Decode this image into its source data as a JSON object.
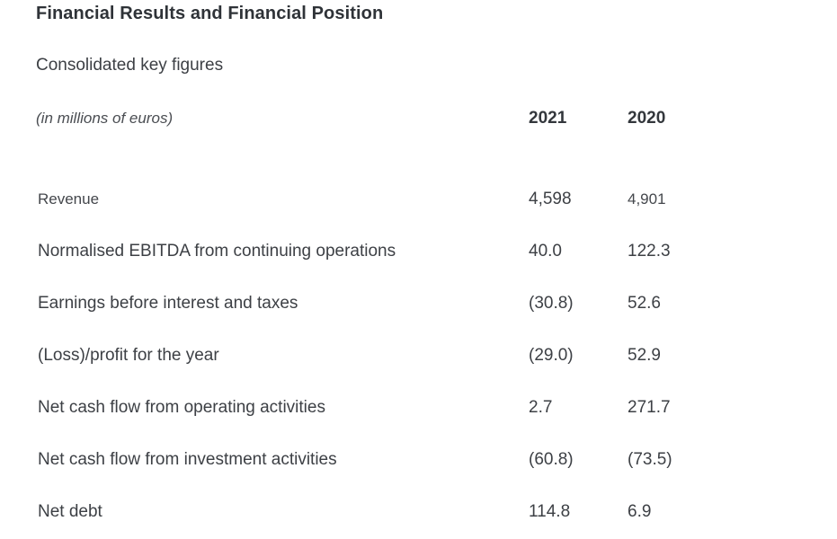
{
  "page": {
    "title": "Financial Results and Financial Position",
    "subtitle": "Consolidated key figures"
  },
  "table": {
    "unit_label": "(in millions of euros)",
    "columns": [
      "2021",
      "2020"
    ],
    "rows": [
      {
        "label": "Revenue",
        "y2021": "4,598",
        "y2020": "4,901"
      },
      {
        "label": "Normalised EBITDA from continuing operations",
        "y2021": "40.0",
        "y2020": "122.3"
      },
      {
        "label": "Earnings before interest and taxes",
        "y2021": "(30.8)",
        "y2020": "52.6"
      },
      {
        "label": "(Loss)/profit for the year",
        "y2021": "(29.0)",
        "y2020": "52.9"
      },
      {
        "label": "Net cash flow from operating activities",
        "y2021": "2.7",
        "y2020": "271.7"
      },
      {
        "label": "Net cash flow from investment activities",
        "y2021": "(60.8)",
        "y2020": "(73.5)"
      },
      {
        "label": "Net debt",
        "y2021": "114.8",
        "y2020": "6.9"
      }
    ]
  },
  "colors": {
    "background": "#ffffff",
    "title_text": "#2f3338",
    "body_text": "#3d4045"
  }
}
